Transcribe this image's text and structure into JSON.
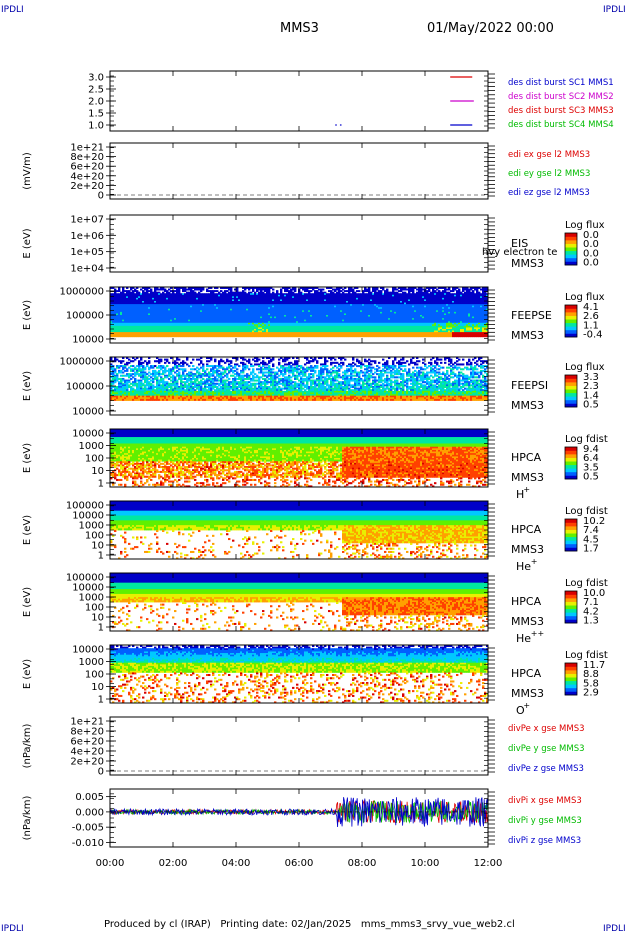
{
  "page": {
    "corner_tl": "IPDLI",
    "corner_tr": "IPDLI",
    "corner_bl": "IPDLI",
    "corner_br": "IPDLI",
    "mission": "MMS3",
    "date": "01/May/2022 00:00",
    "footer": "Produced by cl (IRAP)   Printing date: 02/Jan/2025   mms_mms3_srvy_vue_web2.cl"
  },
  "colors": {
    "red": "#dd0000",
    "green": "#00bb00",
    "blue": "#0000cc",
    "magenta": "#cc00cc",
    "cmap": [
      "#0000c8",
      "#0060ff",
      "#00c8ff",
      "#00e8a0",
      "#60f000",
      "#e8f000",
      "#ffa000",
      "#ff4000",
      "#d80000"
    ]
  },
  "chart_data": {
    "type": "multi-panel",
    "x_ticks": [
      "00:00",
      "02:00",
      "04:00",
      "06:00",
      "08:00",
      "10:00",
      "12:00"
    ],
    "xlim_hours": [
      0,
      12
    ],
    "panels": [
      {
        "id": "burst",
        "type": "line",
        "ylabel": "",
        "ylim": [
          0.75,
          3.25
        ],
        "y_ticks": [
          "3.0",
          "2.5",
          "2.0",
          "1.5",
          "1.0"
        ],
        "legend": [
          {
            "label": "des dist burst SC1 MMS1",
            "color": "blue"
          },
          {
            "label": "des dist burst SC2 MMS2",
            "color": "magenta"
          },
          {
            "label": "des dist burst SC3 MMS3",
            "color": "red"
          },
          {
            "label": "des dist burst SC4 MMS4",
            "color": "green"
          }
        ],
        "segments": [
          {
            "y": 3.0,
            "x": [
              10.8,
              11.5
            ],
            "color": "red"
          },
          {
            "y": 2.0,
            "x": [
              10.8,
              11.55
            ],
            "color": "magenta"
          },
          {
            "y": 1.0,
            "x": [
              10.8,
              11.5
            ],
            "color": "blue"
          },
          {
            "y": 1.0,
            "x": [
              7.15,
              7.2
            ],
            "color": "blue"
          },
          {
            "y": 1.0,
            "x": [
              7.3,
              7.35
            ],
            "color": "blue"
          }
        ]
      },
      {
        "id": "edi",
        "type": "line",
        "ylabel": "(mV/m)",
        "y_ticks": [
          "1e+21",
          "8e+20",
          "6e+20",
          "4e+20",
          "2e+20",
          "0"
        ],
        "legend": [
          {
            "label": "edi ex gse l2 MMS3",
            "color": "red"
          },
          {
            "label": "edi ey gse l2 MMS3",
            "color": "green"
          },
          {
            "label": "edi ez gse l2 MMS3",
            "color": "blue"
          }
        ],
        "zero_line": true
      },
      {
        "id": "eis",
        "type": "heatmap",
        "ylabel": "E (eV)",
        "y_ticks": [
          "1e+07",
          "1e+06",
          "1e+05",
          "1e+04"
        ],
        "instrument": "EIS",
        "extra_label": "hvy electron te",
        "spacecraft": "MMS3",
        "colorbar": {
          "title": "Log flux",
          "values": [
            "0.0",
            "0.0",
            "0.0",
            "0.0"
          ]
        },
        "mode": "empty"
      },
      {
        "id": "feepse",
        "type": "heatmap",
        "ylabel": "E (eV)",
        "y_ticks": [
          "1000000",
          "100000",
          "10000"
        ],
        "instrument": "FEEPSE",
        "spacecraft": "MMS3",
        "colorbar": {
          "title": "Log flux",
          "values": [
            "4.1",
            "2.6",
            "1.1",
            "-0.4"
          ]
        },
        "mode": "feepse"
      },
      {
        "id": "feepsi",
        "type": "heatmap",
        "ylabel": "E (eV)",
        "y_ticks": [
          "1000000",
          "100000",
          "10000"
        ],
        "instrument": "FEEPSI",
        "spacecraft": "MMS3",
        "colorbar": {
          "title": "Log flux",
          "values": [
            "3.3",
            "2.3",
            "1.4",
            "0.5"
          ]
        },
        "mode": "feepsi"
      },
      {
        "id": "hpca_h",
        "type": "heatmap",
        "ylabel": "E (eV)",
        "y_ticks": [
          "10000",
          "1000",
          "100",
          "10",
          "1"
        ],
        "instrument": "HPCA",
        "spacecraft": "MMS3",
        "species": "H",
        "charge": "+",
        "colorbar": {
          "title": "Log fdist",
          "values": [
            "9.4",
            "6.4",
            "3.5",
            "0.5"
          ]
        },
        "mode": "hpca_h"
      },
      {
        "id": "hpca_he",
        "type": "heatmap",
        "ylabel": "E (eV)",
        "y_ticks": [
          "100000",
          "10000",
          "1000",
          "100",
          "10",
          "1"
        ],
        "instrument": "HPCA",
        "spacecraft": "MMS3",
        "species": "He",
        "charge": "+",
        "colorbar": {
          "title": "Log fdist",
          "values": [
            "10.2",
            "7.4",
            "4.5",
            "1.7"
          ]
        },
        "mode": "hpca_he"
      },
      {
        "id": "hpca_he2",
        "type": "heatmap",
        "ylabel": "E (eV)",
        "y_ticks": [
          "100000",
          "10000",
          "1000",
          "100",
          "10",
          "1"
        ],
        "instrument": "HPCA",
        "spacecraft": "MMS3",
        "species": "He",
        "charge": "++",
        "colorbar": {
          "title": "Log fdist",
          "values": [
            "10.0",
            "7.1",
            "4.2",
            "1.3"
          ]
        },
        "mode": "hpca_he2"
      },
      {
        "id": "hpca_o",
        "type": "heatmap",
        "ylabel": "E (eV)",
        "y_ticks": [
          "10000",
          "1000",
          "100",
          "10",
          "1"
        ],
        "instrument": "HPCA",
        "spacecraft": "MMS3",
        "species": "O",
        "charge": "+",
        "colorbar": {
          "title": "Log fdist",
          "values": [
            "11.7",
            "8.8",
            "5.8",
            "2.9"
          ]
        },
        "mode": "hpca_o"
      },
      {
        "id": "divpe",
        "type": "line",
        "ylabel": "(nPa/km)",
        "y_ticks": [
          "1e+21",
          "8e+20",
          "6e+20",
          "4e+20",
          "2e+20",
          "0"
        ],
        "legend": [
          {
            "label": "divPe x gse MMS3",
            "color": "red"
          },
          {
            "label": "divPe y gse MMS3",
            "color": "green"
          },
          {
            "label": "divPe z gse MMS3",
            "color": "blue"
          }
        ],
        "zero_line": true
      },
      {
        "id": "divpi",
        "type": "line",
        "ylabel": "(nPa/km)",
        "ylim": [
          -0.0115,
          0.0075
        ],
        "y_ticks": [
          "0.005",
          "0.000",
          "-0.005",
          "-0.010"
        ],
        "y_tick_values": [
          0.005,
          0.0,
          -0.005,
          -0.01
        ],
        "legend": [
          {
            "label": "divPi x gse MMS3",
            "color": "red"
          },
          {
            "label": "divPi y gse MMS3",
            "color": "green"
          },
          {
            "label": "divPi z gse MMS3",
            "color": "blue"
          }
        ],
        "zero_line": true
      }
    ]
  }
}
